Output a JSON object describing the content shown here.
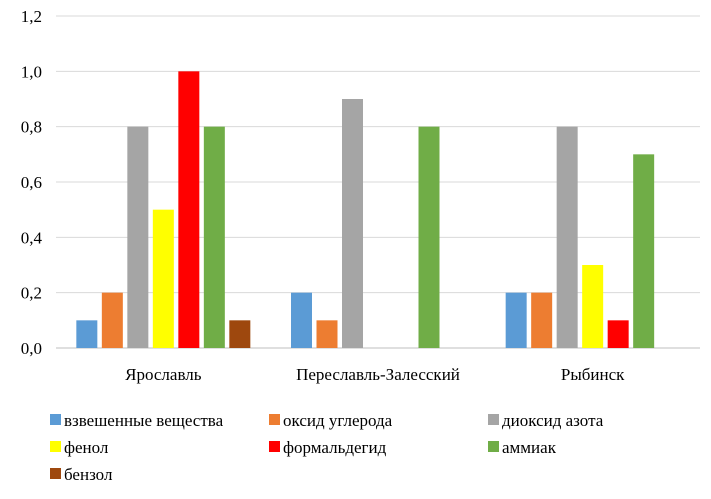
{
  "chart_data": {
    "type": "bar",
    "title": "",
    "xlabel": "",
    "ylabel": "",
    "ylim": [
      0,
      1.2
    ],
    "yticks": [
      "0,0",
      "0,2",
      "0,4",
      "0,6",
      "0,8",
      "1,0",
      "1,2"
    ],
    "grid": true,
    "legend_position": "bottom",
    "categories": [
      "Ярославль",
      "Переславль-Залесский",
      "Рыбинск"
    ],
    "series": [
      {
        "name": "взвешенные вещества",
        "color": "#5B9BD5",
        "values": [
          0.1,
          0.2,
          0.2
        ]
      },
      {
        "name": "оксид углерода",
        "color": "#ED7D31",
        "values": [
          0.2,
          0.1,
          0.2
        ]
      },
      {
        "name": "диоксид азота",
        "color": "#A5A5A5",
        "values": [
          0.8,
          0.9,
          0.8
        ]
      },
      {
        "name": "фенол",
        "color": "#FFFF00",
        "values": [
          0.5,
          null,
          0.3
        ]
      },
      {
        "name": "формальдегид",
        "color": "#FF0000",
        "values": [
          1.0,
          null,
          0.1
        ]
      },
      {
        "name": "аммиак",
        "color": "#70AD47",
        "values": [
          0.8,
          0.8,
          0.7
        ]
      },
      {
        "name": "бензол",
        "color": "#9E480E",
        "values": [
          0.1,
          null,
          null
        ]
      }
    ]
  }
}
